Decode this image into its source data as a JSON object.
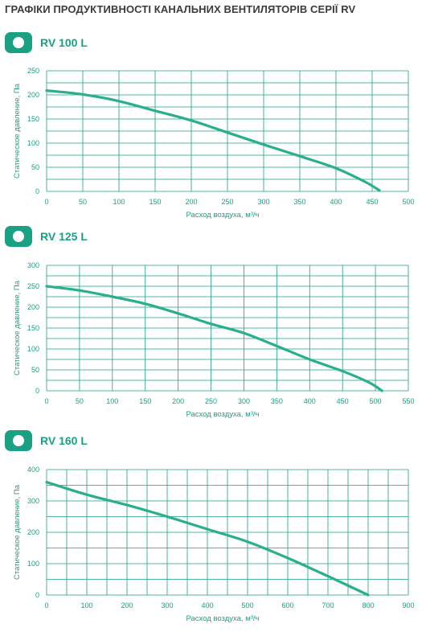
{
  "page": {
    "title": "ГРАФІКИ ПРОДУКТИВНОСТІ КАНАЛЬНИХ ВЕНТИЛЯТОРІВ СЕРІЇ RV"
  },
  "colors": {
    "accent": "#1aa082",
    "grid": "#1aa082",
    "curve": "#2aaf8d"
  },
  "icons": {
    "badge": "circle-badge-icon"
  },
  "sections": [
    {
      "title": "RV 100 L"
    },
    {
      "title": "RV 125 L"
    },
    {
      "title": "RV 160 L"
    }
  ],
  "chart_data": [
    {
      "type": "line",
      "title": "",
      "xlabel": "Расход воздуха, м³/ч",
      "ylabel": "Статическое давление, Па",
      "xlim": [
        0,
        500
      ],
      "ylim": [
        0,
        250
      ],
      "xticks": [
        0,
        50,
        100,
        150,
        200,
        250,
        300,
        350,
        400,
        450,
        500
      ],
      "yticks": [
        0,
        25,
        50,
        75,
        100,
        125,
        150,
        175,
        200,
        225,
        250
      ],
      "xtick_labels": [
        "0",
        "50",
        "100",
        "150",
        "200",
        "250",
        "300",
        "350",
        "400",
        "450",
        "500"
      ],
      "ytick_labels": [
        "0",
        "50",
        "100",
        "150",
        "200",
        "250"
      ],
      "grid": true,
      "series": [
        {
          "x": [
            0,
            50,
            100,
            150,
            200,
            250,
            300,
            350,
            400,
            440,
            460
          ],
          "y": [
            209,
            201,
            187,
            167,
            147,
            122,
            97,
            73,
            48,
            20,
            2
          ]
        }
      ]
    },
    {
      "type": "line",
      "title": "",
      "xlabel": "Расход воздуха, м³/ч",
      "ylabel": "Статическое давление, Па",
      "xlim": [
        0,
        550
      ],
      "ylim": [
        0,
        300
      ],
      "xticks": [
        0,
        50,
        100,
        150,
        200,
        250,
        300,
        350,
        400,
        450,
        500,
        550
      ],
      "yticks": [
        0,
        25,
        50,
        75,
        100,
        125,
        150,
        175,
        200,
        225,
        250,
        275,
        300
      ],
      "xtick_labels": [
        "0",
        "50",
        "100",
        "150",
        "200",
        "250",
        "300",
        "350",
        "400",
        "450",
        "500",
        "550"
      ],
      "ytick_labels": [
        "0",
        "50",
        "100",
        "150",
        "200",
        "250",
        "300"
      ],
      "grid": true,
      "series": [
        {
          "x": [
            0,
            50,
            100,
            150,
            200,
            250,
            300,
            350,
            400,
            450,
            490,
            510
          ],
          "y": [
            250,
            240,
            225,
            208,
            185,
            160,
            138,
            107,
            75,
            47,
            20,
            0
          ]
        }
      ]
    },
    {
      "type": "line",
      "title": "",
      "xlabel": "Расход воздуха, м³/ч",
      "ylabel": "Статическое давление, Па",
      "xlim": [
        0,
        900
      ],
      "ylim": [
        0,
        400
      ],
      "xticks": [
        0,
        50,
        100,
        150,
        200,
        250,
        300,
        350,
        400,
        450,
        500,
        550,
        600,
        650,
        700,
        750,
        800,
        850,
        900
      ],
      "yticks": [
        0,
        50,
        100,
        150,
        200,
        250,
        300,
        350,
        400
      ],
      "xtick_labels": [
        "0",
        "100",
        "200",
        "300",
        "400",
        "500",
        "600",
        "700",
        "800",
        "900"
      ],
      "ytick_labels": [
        "0",
        "100",
        "200",
        "300",
        "400"
      ],
      "grid": true,
      "series": [
        {
          "x": [
            0,
            100,
            200,
            300,
            400,
            500,
            600,
            700,
            800
          ],
          "y": [
            360,
            320,
            287,
            250,
            210,
            170,
            118,
            60,
            0
          ]
        }
      ]
    }
  ]
}
